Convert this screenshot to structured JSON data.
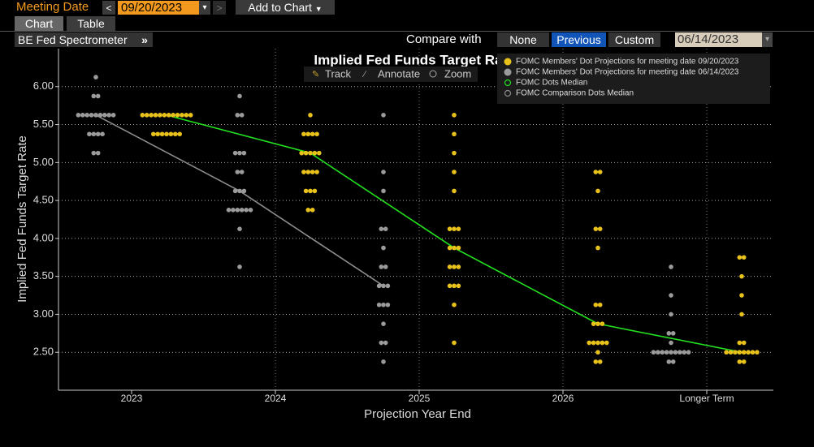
{
  "ui": {
    "meeting_label": "Meeting Date",
    "meeting_date": "09/20/2023",
    "add_to_chart": "Add to Chart",
    "tabs": [
      "Chart",
      "Table"
    ],
    "tool_name": "BE Fed Spectrometer",
    "compare_label": "Compare with",
    "compare_options": [
      "None",
      "Previous",
      "Custom"
    ],
    "compare_date": "06/14/2023",
    "chart_tools": [
      "Track",
      "Annotate",
      "Zoom"
    ]
  },
  "chart_data": {
    "type": "dot",
    "title": "Implied Fed Funds Target Rate",
    "x_label": "Projection Year End",
    "y_label": "Implied Fed Funds Target Rate",
    "categories": [
      "2023",
      "2024",
      "2025",
      "2026",
      "Longer Term"
    ],
    "ylim": [
      2.0,
      6.5
    ],
    "yticks": [
      {
        "value": 2.5,
        "label": "2.50"
      },
      {
        "value": 3,
        "label": "3.00"
      },
      {
        "value": 3.5,
        "label": "3.50"
      },
      {
        "value": 4,
        "label": "4.00"
      },
      {
        "value": 4.5,
        "label": "4.50"
      },
      {
        "value": 5,
        "label": "5.00"
      },
      {
        "value": 5.5,
        "label": "5.50"
      },
      {
        "value": 6,
        "label": "6.00"
      }
    ],
    "grid": true,
    "series": [
      {
        "name": "FOMC Members' Dot Projections for meeting date 09/20/2023",
        "color": "#e8c21a",
        "type": "dot",
        "values": [
          [
            5.625,
            5.625,
            5.625,
            5.625,
            5.625,
            5.625,
            5.625,
            5.625,
            5.625,
            5.625,
            5.625,
            5.625,
            5.375,
            5.375,
            5.375,
            5.375,
            5.375,
            5.375,
            5.375
          ],
          [
            5.625,
            5.375,
            5.375,
            5.375,
            5.375,
            5.125,
            5.125,
            5.125,
            5.125,
            5.125,
            4.875,
            4.875,
            4.875,
            4.875,
            4.625,
            4.625,
            4.625,
            4.375,
            4.375
          ],
          [
            5.625,
            5.375,
            5.125,
            4.875,
            4.625,
            4.125,
            4.125,
            4.125,
            3.875,
            3.875,
            3.875,
            3.625,
            3.625,
            3.625,
            3.375,
            3.375,
            3.375,
            3.125,
            2.625
          ],
          [
            4.875,
            4.875,
            4.625,
            4.125,
            4.125,
            3.875,
            3.125,
            3.125,
            2.875,
            2.875,
            2.875,
            2.625,
            2.625,
            2.625,
            2.625,
            2.625,
            2.5,
            2.375,
            2.375
          ],
          [
            3.75,
            3.75,
            3.5,
            3.25,
            3.0,
            2.625,
            2.625,
            2.5,
            2.5,
            2.5,
            2.5,
            2.5,
            2.5,
            2.5,
            2.5,
            2.375,
            2.375
          ]
        ]
      },
      {
        "name": "FOMC Members' Dot Projections for meeting date 06/14/2023",
        "color": "#9b9b9b",
        "type": "dot",
        "values": [
          [
            6.125,
            5.875,
            5.875,
            5.625,
            5.625,
            5.625,
            5.625,
            5.625,
            5.625,
            5.625,
            5.625,
            5.625,
            5.375,
            5.375,
            5.375,
            5.375,
            5.125,
            5.125
          ],
          [
            5.875,
            5.625,
            5.625,
            5.125,
            5.125,
            5.125,
            4.875,
            4.875,
            4.625,
            4.625,
            4.625,
            4.375,
            4.375,
            4.375,
            4.375,
            4.375,
            4.375,
            4.125,
            3.625
          ],
          [
            5.625,
            4.875,
            4.625,
            4.125,
            4.125,
            3.875,
            3.625,
            3.625,
            3.375,
            3.375,
            3.375,
            3.125,
            3.125,
            3.125,
            2.875,
            2.625,
            2.625,
            2.375
          ],
          [],
          [
            3.625,
            3.25,
            3.0,
            2.75,
            2.75,
            2.625,
            2.5,
            2.5,
            2.5,
            2.5,
            2.5,
            2.5,
            2.5,
            2.5,
            2.5,
            2.375,
            2.375
          ]
        ]
      },
      {
        "name": "FOMC Dots Median",
        "color": "#22e11f",
        "type": "line",
        "values": [
          5.625,
          5.125,
          3.875,
          2.875,
          2.5
        ]
      },
      {
        "name": "FOMC Comparison Dots Median",
        "color": "#8e8e8e",
        "type": "line",
        "values": [
          5.625,
          4.625,
          3.375,
          null,
          2.5
        ]
      }
    ]
  }
}
